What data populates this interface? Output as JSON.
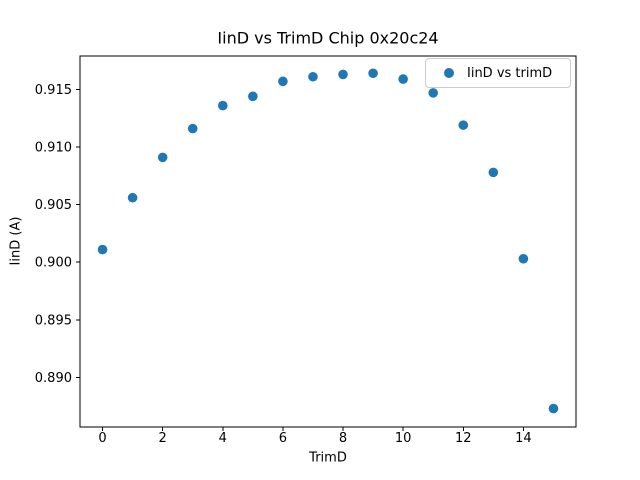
{
  "figure": {
    "background": "#ffffff"
  },
  "chart_data": {
    "type": "scatter",
    "title": "IinD vs TrimD Chip 0x20c24",
    "xlabel": "TrimD",
    "ylabel": "IinD (A)",
    "legend": {
      "label": "IinD vs trimD",
      "position": "upper right"
    },
    "marker_color": "#1f77b4",
    "axis_color": "#000000",
    "grid": false,
    "x": [
      0,
      1,
      2,
      3,
      4,
      5,
      6,
      7,
      8,
      9,
      10,
      11,
      12,
      13,
      14,
      15
    ],
    "y": [
      0.9011,
      0.9056,
      0.9091,
      0.9116,
      0.9136,
      0.9144,
      0.9157,
      0.9161,
      0.9163,
      0.9164,
      0.9159,
      0.9147,
      0.9119,
      0.9078,
      0.9003,
      0.8873
    ],
    "xlim": [
      -0.75,
      15.75
    ],
    "ylim": [
      0.8857,
      0.9179
    ],
    "xticks": [
      0,
      2,
      4,
      6,
      8,
      10,
      12,
      14
    ],
    "xtick_labels": [
      "0",
      "2",
      "4",
      "6",
      "8",
      "10",
      "12",
      "14"
    ],
    "yticks": [
      0.89,
      0.895,
      0.9,
      0.905,
      0.91,
      0.915
    ],
    "ytick_labels": [
      "0.890",
      "0.895",
      "0.900",
      "0.905",
      "0.910",
      "0.915"
    ]
  }
}
